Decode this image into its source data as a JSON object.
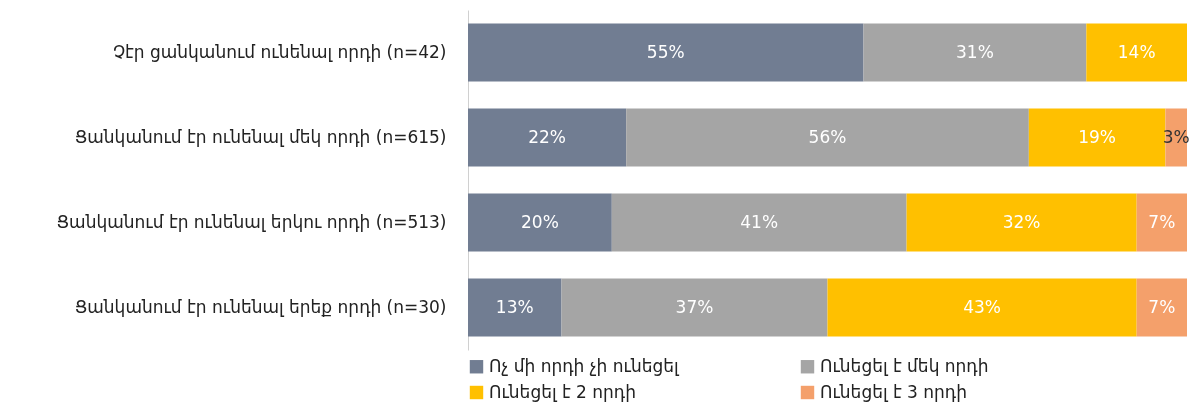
{
  "chart_data": {
    "type": "bar",
    "orientation": "horizontal",
    "stacked": true,
    "categories": [
      "Չէր ցանկանում ունենալ որդի (n=42)",
      "Ցանկանում էր ունենալ մեկ որդի (n=615)",
      "Ցանկանում էր ունենալ երկու որդի (n=513)",
      "Ցանկանում էր ունենալ երեք որդի (n=30)"
    ],
    "xlim": [
      0,
      100
    ],
    "tick_labels": "y",
    "legend": "bottom",
    "series": [
      {
        "name": "Ոչ մի որդի չի ունեցել",
        "color": "#717d92",
        "values": [
          55,
          22,
          20,
          13
        ],
        "value_labels": [
          "55%",
          "22%",
          "20%",
          "13%"
        ]
      },
      {
        "name": "Ունեցել է մեկ որդի",
        "color": "#a5a5a5",
        "values": [
          31,
          56,
          41,
          37
        ],
        "value_labels": [
          "31%",
          "56%",
          "41%",
          "37%"
        ]
      },
      {
        "name": "Ունեցել է 2 որդի",
        "color": "#ffc000",
        "values": [
          14,
          19,
          32,
          43
        ],
        "value_labels": [
          "14%",
          "19%",
          "32%",
          "43%"
        ]
      },
      {
        "name": "Ունեցել  է 3 որդի",
        "color": "#f4a06b",
        "values": [
          null,
          3,
          7,
          7
        ],
        "value_labels": [
          null,
          "3%",
          "7%",
          "7%"
        ]
      }
    ]
  }
}
